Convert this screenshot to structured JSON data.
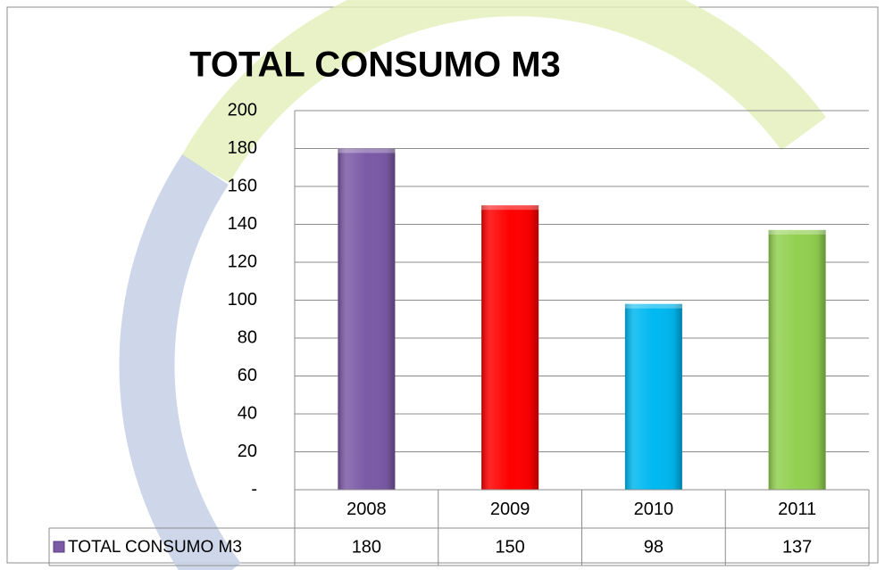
{
  "chart_data": {
    "type": "bar",
    "title": "TOTAL CONSUMO M3",
    "categories": [
      "2008",
      "2009",
      "2010",
      "2011"
    ],
    "series": [
      {
        "name": "TOTAL CONSUMO M3",
        "values": [
          180,
          150,
          98,
          137
        ],
        "colors": [
          "#7b5aa6",
          "#ff0000",
          "#00b8f0",
          "#92d050"
        ]
      }
    ],
    "ylim": [
      0,
      200
    ],
    "yticks": [
      {
        "value": 0,
        "label": "-"
      },
      20,
      40,
      60,
      80,
      100,
      120,
      140,
      160,
      180,
      200
    ],
    "grid": true,
    "data_table": true
  }
}
